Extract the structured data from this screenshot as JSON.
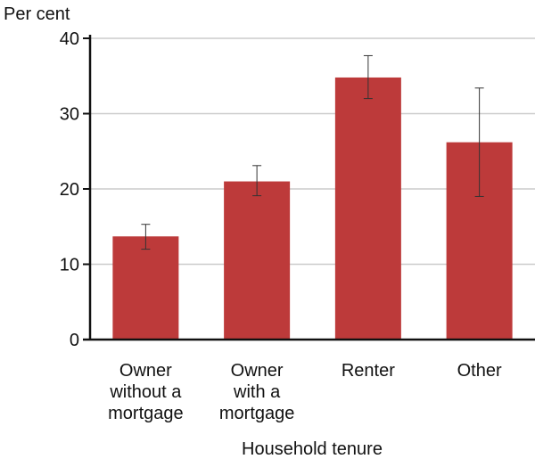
{
  "chart_data": {
    "type": "bar",
    "ylabel": "Per cent",
    "xlabel": "Household tenure",
    "ylim": [
      0,
      40
    ],
    "yticks": [
      0,
      10,
      20,
      30,
      40
    ],
    "grid": true,
    "categories": [
      [
        "Owner",
        "without a",
        "mortgage"
      ],
      [
        "Owner",
        "with a",
        "mortgage"
      ],
      [
        "Renter"
      ],
      [
        "Other"
      ]
    ],
    "values": [
      13.7,
      21.0,
      34.8,
      26.2
    ],
    "error_low": [
      12.0,
      19.1,
      32.0,
      19.0
    ],
    "error_high": [
      15.3,
      23.1,
      37.7,
      33.4
    ],
    "bar_color": "#bd3a3a",
    "grid_color": "#cccccc",
    "errorbar_color": "#333333"
  }
}
